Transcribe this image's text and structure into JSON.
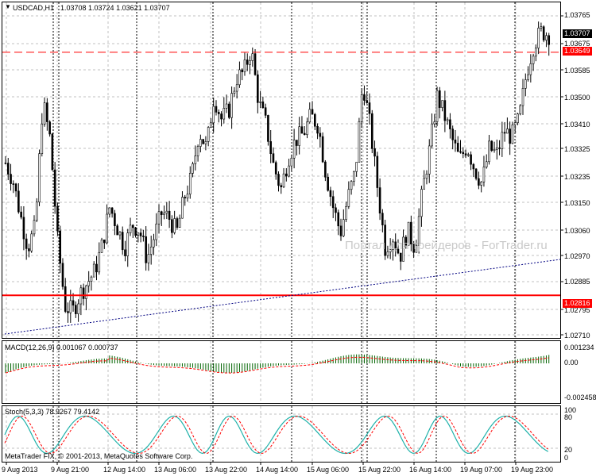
{
  "header": {
    "symbol": "USDCAD,H1",
    "ohlc": "1.03708 1.03724 1.03621 1.03707"
  },
  "macd_label": "MACD(12,26,9) 0.001067 0.000737",
  "stoch_label": "Stoch(5,3,3) 78.9267 79.4142",
  "copyright": "MetaTrader FIX, © 2001-2013, MetaQuotes Software Corp.",
  "watermark": "Портал для трейдеров - ForTrader.ru",
  "price_axis": [
    "1.03765",
    "1.03675",
    "1.03585",
    "1.03500",
    "1.03410",
    "1.03325",
    "1.03235",
    "1.03150",
    "1.03060",
    "1.02970",
    "1.02885",
    "1.02795",
    "1.02710"
  ],
  "price_boxes": {
    "current": "1.03707",
    "resistance": "1.03649",
    "support": "1.02816"
  },
  "macd_axis": [
    "0.001234",
    "0.00",
    "-0.002458"
  ],
  "stoch_axis": [
    "80",
    "100",
    "20",
    "0"
  ],
  "time_axis": [
    "9 Aug 2013",
    "9 Aug 21:00",
    "12 Aug 14:00",
    "13 Aug 06:00",
    "13 Aug 22:00",
    "14 Aug 14:00",
    "15 Aug 06:00",
    "15 Aug 22:00",
    "16 Aug 14:00",
    "19 Aug 07:00",
    "19 Aug 23:00"
  ],
  "colors": {
    "bull": "#ffffff",
    "bear": "#000000",
    "resistance": "#ff0000",
    "support": "#ff0000",
    "trendline": "#000080",
    "macd_hist": "#006400",
    "macd_signal": "#ff0000",
    "stoch_main": "#20b2aa",
    "stoch_signal": "#ff0000",
    "current_box": "#000000"
  },
  "chart_data": {
    "type": "line",
    "title": "USDCAD,H1",
    "ohlc_last": [
      1.03708,
      1.03724,
      1.03621,
      1.03707
    ],
    "horizontal_levels": {
      "resistance": 1.03649,
      "support": 1.02816
    },
    "close_path": [
      1.0327,
      1.0321,
      1.0309,
      1.0298,
      1.0305,
      1.0348,
      1.0335,
      1.03,
      1.0278,
      1.0276,
      1.0282,
      1.0286,
      1.029,
      1.0299,
      1.0312,
      1.0305,
      1.0298,
      1.0306,
      1.0304,
      1.0294,
      1.0302,
      1.031,
      1.0308,
      1.0303,
      1.0315,
      1.0322,
      1.0338,
      1.0332,
      1.035,
      1.0342,
      1.0345,
      1.0356,
      1.0358,
      1.0366,
      1.0348,
      1.034,
      1.0326,
      1.0318,
      1.0329,
      1.0335,
      1.0337,
      1.0343,
      1.034,
      1.0324,
      1.0312,
      1.0303,
      1.0315,
      1.0324,
      1.0355,
      1.0339,
      1.0318,
      1.0298,
      1.0302,
      1.0295,
      1.0304,
      1.0298,
      1.0317,
      1.0332,
      1.035,
      1.0343,
      1.0335,
      1.0328,
      1.0333,
      1.0325,
      1.032,
      1.0332,
      1.033,
      1.0338,
      1.0336,
      1.0342,
      1.0358,
      1.0368,
      1.0372,
      1.0371
    ],
    "ylim": [
      1.0267,
      1.0382
    ]
  }
}
